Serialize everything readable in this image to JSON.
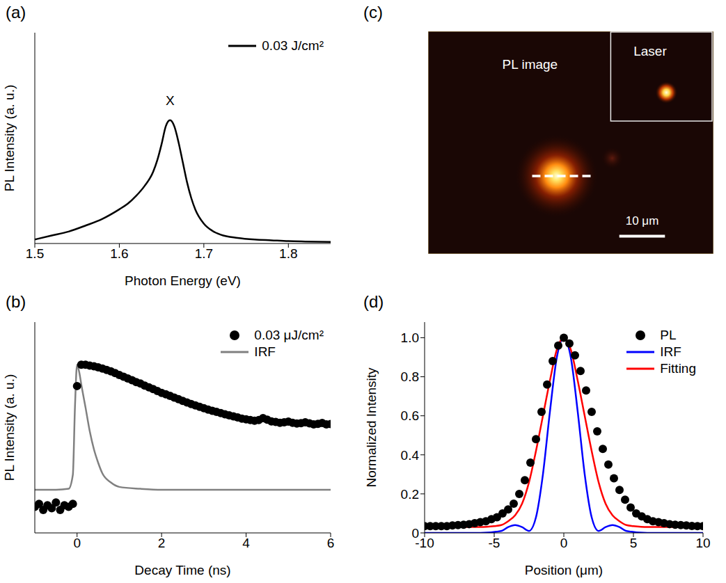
{
  "chart_data": [
    {
      "panel": "(a)",
      "type": "line",
      "x_label": "Photon Energy (eV)",
      "y_label": "PL Intensity (a. u.)",
      "annotation": "X",
      "xlim": [
        1.5,
        1.85
      ],
      "xticks": [
        1.5,
        1.6,
        1.7,
        1.8
      ],
      "ylim": [
        0,
        5.3
      ],
      "yticks": [
        0,
        1,
        2,
        3,
        4,
        5
      ],
      "tick_labels": "x",
      "grid": false,
      "legend": "upper right",
      "series": [
        {
          "name": "0.03 J/cm²",
          "type": "line",
          "color": "#000000",
          "line_style": "solid",
          "x": [
            1.5,
            1.52,
            1.54,
            1.56,
            1.58,
            1.6,
            1.61,
            1.62,
            1.63,
            1.64,
            1.645,
            1.65,
            1.655,
            1.66,
            1.665,
            1.67,
            1.675,
            1.68,
            1.685,
            1.69,
            1.7,
            1.71,
            1.72,
            1.74,
            1.76,
            1.78,
            1.8,
            1.82,
            1.85
          ],
          "values": [
            0.1,
            0.2,
            0.3,
            0.45,
            0.62,
            0.86,
            1.0,
            1.2,
            1.45,
            1.8,
            2.1,
            2.5,
            2.95,
            3.1,
            2.95,
            2.55,
            2.05,
            1.55,
            1.15,
            0.85,
            0.5,
            0.32,
            0.22,
            0.14,
            0.1,
            0.08,
            0.06,
            0.05,
            0.04
          ]
        }
      ]
    },
    {
      "panel": "(b)",
      "type": "scatter",
      "x_label": "Decay Time (ns)",
      "y_label": "PL Intensity (a. u.)",
      "log": "y",
      "xlim": [
        -1,
        6
      ],
      "xticks": [
        0,
        2,
        4,
        6
      ],
      "ylim": [
        15,
        2300
      ],
      "yticks": [
        100,
        1000
      ],
      "tick_labels": "x",
      "grid": false,
      "legend": "upper right",
      "series": [
        {
          "name": "0.03 μJ/cm²",
          "type": "scatter",
          "marker": "circle",
          "color": "#000000",
          "x": [
            -1,
            -0.9,
            -0.8,
            -0.7,
            -0.6,
            -0.5,
            -0.4,
            -0.3,
            -0.2,
            -0.1,
            0,
            0.1,
            0.2,
            0.3,
            0.4,
            0.5,
            0.6,
            0.7,
            0.8,
            0.9,
            1.0,
            1.1,
            1.2,
            1.3,
            1.4,
            1.5,
            1.6,
            1.7,
            1.8,
            1.9,
            2.0,
            2.1,
            2.2,
            2.3,
            2.4,
            2.5,
            2.6,
            2.7,
            2.8,
            2.9,
            3.0,
            3.1,
            3.2,
            3.3,
            3.4,
            3.5,
            3.6,
            3.7,
            3.8,
            3.9,
            4.0,
            4.1,
            4.2,
            4.3,
            4.4,
            4.5,
            4.6,
            4.7,
            4.8,
            4.9,
            5.0,
            5.1,
            5.2,
            5.3,
            5.4,
            5.5,
            5.6,
            5.7,
            5.8,
            5.9,
            6.0
          ],
          "values": [
            28,
            30,
            26,
            29,
            27,
            31,
            26,
            29,
            28,
            30,
            500,
            830,
            830,
            815,
            800,
            780,
            760,
            735,
            710,
            680,
            650,
            625,
            600,
            575,
            550,
            530,
            505,
            485,
            465,
            445,
            425,
            410,
            395,
            380,
            365,
            350,
            338,
            325,
            315,
            305,
            295,
            285,
            277,
            270,
            262,
            255,
            248,
            242,
            236,
            230,
            226,
            222,
            218,
            222,
            232,
            224,
            215,
            212,
            208,
            210,
            214,
            208,
            204,
            206,
            210,
            205,
            200,
            203,
            207,
            200,
            202
          ]
        },
        {
          "name": "IRF",
          "type": "line",
          "line_style": "solid",
          "color": "#808080",
          "x": [
            -1,
            -0.5,
            -0.2,
            -0.1,
            -0.05,
            0,
            0.05,
            0.1,
            0.2,
            0.3,
            0.4,
            0.5,
            0.6,
            0.8,
            1.0,
            1.5,
            2,
            3,
            4,
            5,
            6
          ],
          "values": [
            42,
            42,
            43,
            60,
            300,
            830,
            700,
            520,
            300,
            170,
            110,
            80,
            62,
            50,
            45,
            43,
            42,
            42,
            42,
            42,
            42
          ]
        }
      ]
    },
    {
      "panel": "(c)",
      "type": "image",
      "title": "PL image",
      "inset": "Laser",
      "scale_bar": "10 μm"
    },
    {
      "panel": "(d)",
      "type": "line",
      "x_label": "Position (μm)",
      "y_label": "Normalized Intensity",
      "xlim": [
        -10,
        10
      ],
      "xticks": [
        -10,
        -5,
        0,
        5,
        10
      ],
      "ylim": [
        0,
        1.08
      ],
      "yticks": [
        0,
        0.2,
        0.4,
        0.6,
        0.8,
        {
          "value": 1,
          "label": "1.0"
        }
      ],
      "grid": false,
      "legend": "upper right",
      "series": [
        {
          "name": "PL",
          "type": "scatter",
          "marker": "circle",
          "color": "#000000",
          "x": [
            -10,
            -9.6,
            -9.2,
            -8.8,
            -8.4,
            -8,
            -7.6,
            -7.2,
            -6.8,
            -6.4,
            -6,
            -5.6,
            -5.2,
            -4.8,
            -4.4,
            -4,
            -3.6,
            -3.2,
            -2.8,
            -2.4,
            -2,
            -1.6,
            -1.2,
            -0.8,
            -0.4,
            0,
            0.4,
            0.8,
            1.2,
            1.6,
            2,
            2.4,
            2.8,
            3.2,
            3.6,
            4,
            4.4,
            4.8,
            5.2,
            5.6,
            6,
            6.4,
            6.8,
            7.2,
            7.6,
            8,
            8.4,
            8.8,
            9.2,
            9.6,
            10
          ],
          "values": [
            0.035,
            0.035,
            0.035,
            0.035,
            0.035,
            0.038,
            0.04,
            0.042,
            0.045,
            0.05,
            0.055,
            0.06,
            0.07,
            0.08,
            0.1,
            0.12,
            0.15,
            0.2,
            0.27,
            0.36,
            0.48,
            0.62,
            0.76,
            0.88,
            0.96,
            1.0,
            0.97,
            0.91,
            0.83,
            0.73,
            0.62,
            0.52,
            0.43,
            0.35,
            0.28,
            0.22,
            0.17,
            0.13,
            0.1,
            0.085,
            0.07,
            0.06,
            0.055,
            0.05,
            0.045,
            0.042,
            0.04,
            0.038,
            0.036,
            0.035,
            0.035
          ]
        },
        {
          "name": "IRF",
          "type": "line",
          "line_style": "solid",
          "color": "#0000ff",
          "x": [
            -10,
            -6,
            -4.5,
            -4,
            -3.5,
            -3,
            -2.5,
            -2,
            -1.5,
            -1,
            -0.5,
            0,
            0.5,
            1,
            1.5,
            2,
            2.5,
            3,
            3.5,
            4,
            4.5,
            6,
            10
          ],
          "values": [
            0,
            0,
            0.01,
            0.03,
            0.04,
            0.03,
            0.01,
            0.08,
            0.3,
            0.62,
            0.9,
            1.0,
            0.9,
            0.62,
            0.3,
            0.08,
            0.01,
            0.03,
            0.04,
            0.03,
            0.01,
            0,
            0
          ]
        },
        {
          "name": "Fitting",
          "type": "line",
          "line_style": "solid",
          "color": "#ff0000",
          "x": [
            -10,
            -8,
            -6,
            -5,
            -4.5,
            -4,
            -3.5,
            -3,
            -2.5,
            -2,
            -1.5,
            -1,
            -0.5,
            0,
            0.5,
            1,
            1.5,
            2,
            2.5,
            3,
            3.5,
            4,
            4.5,
            5,
            6,
            8,
            10
          ],
          "values": [
            0.03,
            0.03,
            0.03,
            0.035,
            0.04,
            0.06,
            0.09,
            0.15,
            0.26,
            0.42,
            0.6,
            0.78,
            0.94,
            1.0,
            0.94,
            0.78,
            0.6,
            0.42,
            0.26,
            0.15,
            0.09,
            0.06,
            0.04,
            0.035,
            0.03,
            0.03,
            0.03
          ]
        }
      ]
    }
  ]
}
